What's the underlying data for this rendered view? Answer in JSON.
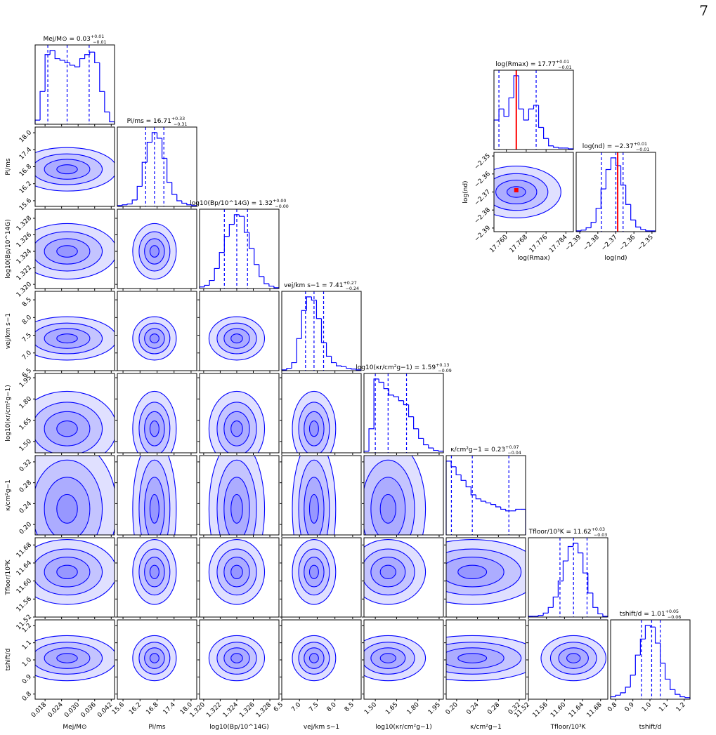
{
  "page_number": "7",
  "chart_data": [
    {
      "type": "corner",
      "color": "#0000ff",
      "params": [
        {
          "label": "Mej/M⊙",
          "title": "Mej/M⊙ = 0.03",
          "plus": "+0.01",
          "minus": "−0.01",
          "xlim": [
            0.0144,
            0.0432
          ],
          "xticks": [
            0.018,
            0.024,
            {
              "value": 0.03,
              "label": "0.030"
            },
            0.036,
            0.042
          ],
          "quantiles": [
            0.019,
            0.026,
            0.034
          ],
          "bins": [
            0.0144,
            0.0162,
            0.018,
            0.0198,
            0.0216,
            0.0234,
            0.0252,
            0.027,
            0.0288,
            0.0306,
            0.0324,
            0.0342,
            0.036,
            0.0378,
            0.0396,
            0.0414,
            0.0432
          ],
          "counts": [
            5,
            40,
            85,
            90,
            80,
            78,
            75,
            72,
            70,
            80,
            85,
            88,
            75,
            40,
            15,
            3
          ]
        },
        {
          "label": "Pi/ms",
          "title": "Pi/ms = 16.71",
          "plus": "+0.33",
          "minus": "−0.31",
          "xlim": [
            15.4,
            18.2
          ],
          "xticks": [
            15.6,
            16.2,
            16.8,
            17.4,
            {
              "value": 18,
              "label": "18.0"
            }
          ],
          "quantiles": [
            16.4,
            16.71,
            17.04
          ],
          "bins": [
            15.4,
            15.575,
            15.75,
            15.925,
            16.1,
            16.275,
            16.45,
            16.625,
            16.8,
            16.975,
            17.15,
            17.325,
            17.5,
            17.675,
            17.85,
            18.025,
            18.2
          ],
          "counts": [
            1,
            2,
            3,
            8,
            25,
            55,
            80,
            92,
            85,
            60,
            30,
            15,
            7,
            4,
            2,
            1
          ]
        },
        {
          "label": "log10(Bp/10^14G)",
          "title": "log10(Bp/10^14G) = 1.32",
          "plus": "+0.00",
          "minus": "−0.00",
          "xlim": [
            1.3195,
            1.3291
          ],
          "xticks": [
            {
              "value": 1.32,
              "label": "1.320"
            },
            1.322,
            1.324,
            1.326,
            1.328
          ],
          "quantiles": [
            1.3225,
            1.324,
            1.3253
          ],
          "bins": [
            1.3195,
            1.3201,
            1.3207,
            1.3213,
            1.3219,
            1.3225,
            1.3231,
            1.3237,
            1.3243,
            1.3249,
            1.3255,
            1.3261,
            1.3267,
            1.3273,
            1.3279,
            1.3285,
            1.3291
          ],
          "counts": [
            2,
            4,
            10,
            25,
            45,
            65,
            80,
            92,
            90,
            70,
            50,
            30,
            15,
            6,
            3,
            1
          ]
        },
        {
          "label": "vej/km s−1",
          "title": "vej/km s−1 = 7.41",
          "plus": "+0.27",
          "minus": "−0.24",
          "xlim": [
            6.5,
            8.74
          ],
          "xticks": [
            6.5,
            {
              "value": 7,
              "label": "7.0"
            },
            7.5,
            {
              "value": 8,
              "label": "8.0"
            },
            8.5
          ],
          "quantiles": [
            7.17,
            7.41,
            7.68
          ],
          "bins": [
            6.5,
            6.64,
            6.78,
            6.92,
            7.06,
            7.2,
            7.34,
            7.48,
            7.62,
            7.76,
            7.9,
            8.04,
            8.18,
            8.32,
            8.46,
            8.6,
            8.74
          ],
          "counts": [
            1,
            3,
            10,
            40,
            75,
            92,
            88,
            65,
            35,
            18,
            10,
            6,
            5,
            3,
            2,
            1
          ]
        },
        {
          "label": "log10(κr/cm²g−1)",
          "title": "log10(κr/cm²g−1) = 1.59",
          "plus": "+0.13",
          "minus": "−0.09",
          "xlim": [
            1.42,
            1.98
          ],
          "xticks": [
            {
              "value": 1.5,
              "label": "1.50"
            },
            1.65,
            {
              "value": 1.8,
              "label": "1.80"
            },
            1.95
          ],
          "quantiles": [
            1.5,
            1.59,
            1.72
          ],
          "bins": [
            1.42,
            1.455,
            1.49,
            1.525,
            1.56,
            1.595,
            1.63,
            1.665,
            1.7,
            1.735,
            1.77,
            1.805,
            1.84,
            1.875,
            1.91,
            1.945,
            1.98
          ],
          "counts": [
            2,
            30,
            92,
            88,
            80,
            72,
            70,
            65,
            60,
            45,
            30,
            18,
            10,
            6,
            3,
            2
          ]
        },
        {
          "label": "κ/cm²g−1",
          "title": "κ/cm²g−1 = 0.23",
          "plus": "+0.07",
          "minus": "−0.04",
          "xlim": [
            0.18,
            0.332
          ],
          "xticks": [
            {
              "value": 0.2,
              "label": "0.20"
            },
            0.24,
            0.28,
            0.32
          ],
          "quantiles": [
            0.19,
            0.23,
            0.3
          ],
          "bins": [
            0.18,
            0.1895,
            0.199,
            0.2085,
            0.218,
            0.2275,
            0.237,
            0.2465,
            0.256,
            0.2655,
            0.275,
            0.2845,
            0.294,
            0.3035,
            0.313,
            0.3225,
            0.332
          ],
          "counts": [
            92,
            85,
            75,
            68,
            60,
            50,
            45,
            42,
            40,
            38,
            35,
            32,
            30,
            30,
            32,
            32
          ]
        },
        {
          "label": "Tfloor/10³K",
          "title": "Tfloor/10³K = 11.62",
          "plus": "+0.03",
          "minus": "−0.03",
          "xlim": [
            11.52,
            11.696
          ],
          "xticks": [
            11.52,
            11.56,
            {
              "value": 11.6,
              "label": "11.60"
            },
            11.64,
            11.68
          ],
          "quantiles": [
            11.59,
            11.62,
            11.65
          ],
          "bins": [
            11.52,
            11.531,
            11.542,
            11.553,
            11.564,
            11.575,
            11.586,
            11.597,
            11.608,
            11.619,
            11.63,
            11.641,
            11.652,
            11.663,
            11.674,
            11.685,
            11.696
          ],
          "counts": [
            1,
            1,
            2,
            5,
            12,
            25,
            45,
            70,
            88,
            92,
            80,
            55,
            30,
            12,
            4,
            1
          ]
        },
        {
          "label": "tshift/d",
          "title": "tshift/d = 1.01",
          "plus": "+0.05",
          "minus": "−0.06",
          "xlim": [
            0.77,
            1.234
          ],
          "xticks": [
            0.8,
            0.9,
            {
              "value": 1,
              "label": "1.0"
            },
            1.1,
            1.2
          ],
          "quantiles": [
            0.95,
            1.01,
            1.06
          ],
          "bins": [
            0.77,
            0.799,
            0.828,
            0.857,
            0.886,
            0.915,
            0.944,
            0.973,
            1.002,
            1.031,
            1.06,
            1.089,
            1.118,
            1.147,
            1.176,
            1.205,
            1.234
          ],
          "counts": [
            3,
            5,
            8,
            15,
            30,
            55,
            75,
            92,
            90,
            70,
            45,
            25,
            12,
            6,
            3,
            2
          ]
        }
      ]
    },
    {
      "type": "corner",
      "color": "#0000ff",
      "truth_color": "#ff0000",
      "truth": [
        17.764,
        -2.369
      ],
      "params": [
        {
          "label": "log(Rmax)",
          "title": "log(Rmax) = 17.77",
          "plus": "+0.01",
          "minus": "−0.01",
          "xlim": [
            17.755,
            17.787
          ],
          "xticks": [
            {
              "value": 17.76,
              "label": "17.760"
            },
            17.768,
            17.776,
            17.784
          ],
          "quantiles": [
            17.757,
            17.764,
            17.772
          ],
          "bins": [
            17.755,
            17.757,
            17.759,
            17.761,
            17.763,
            17.765,
            17.767,
            17.769,
            17.771,
            17.773,
            17.775,
            17.777,
            17.779,
            17.781,
            17.783,
            17.785,
            17.787
          ],
          "counts": [
            40,
            55,
            45,
            70,
            100,
            55,
            40,
            55,
            60,
            30,
            15,
            5,
            3,
            2,
            2,
            1
          ]
        },
        {
          "label": "log(nd)",
          "title": "log(nd) = −2.37",
          "plus": "+0.01",
          "minus": "−0.01",
          "xlim": [
            -2.392,
            -2.348
          ],
          "xticks": [
            {
              "value": -2.39,
              "label": "−2.39"
            },
            {
              "value": -2.38,
              "label": "−2.38"
            },
            {
              "value": -2.37,
              "label": "−2.37"
            },
            {
              "value": -2.36,
              "label": "−2.36"
            },
            {
              "value": -2.35,
              "label": "−2.35"
            }
          ],
          "quantiles": [
            -2.378,
            -2.37,
            -2.366
          ],
          "bins": [
            -2.392,
            -2.38925,
            -2.3865,
            -2.38375,
            -2.381,
            -2.37825,
            -2.3755,
            -2.37275,
            -2.37,
            -2.36725,
            -2.3645,
            -2.36175,
            -2.359,
            -2.35625,
            -2.3535,
            -2.35075,
            -2.348
          ],
          "counts": [
            1,
            2,
            5,
            12,
            30,
            55,
            80,
            95,
            85,
            60,
            35,
            15,
            6,
            3,
            1,
            1
          ]
        }
      ]
    }
  ]
}
